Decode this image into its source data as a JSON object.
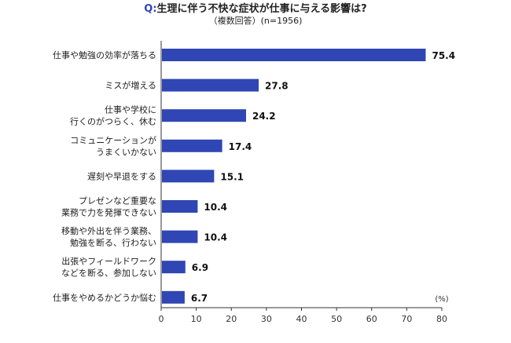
{
  "chart_data": {
    "type": "bar",
    "orientation": "horizontal",
    "title_prefix": "Q:",
    "title": "生理に伴う不快な症状が仕事に与える影響は?",
    "subtitle": "（複数回答）(n=1956)",
    "unit_label": "(%)",
    "categories": [
      [
        "仕事や勉強の効率が落ちる"
      ],
      [
        "ミスが増える"
      ],
      [
        "仕事や学校に",
        "行くのがつらく、休む"
      ],
      [
        "コミュニケーションが",
        "うまくいかない"
      ],
      [
        "遅刻や早退をする"
      ],
      [
        "プレゼンなど重要な",
        "業務で力を発揮できない"
      ],
      [
        "移動や外出を伴う業務、",
        "勉強を断る、行わない"
      ],
      [
        "出張やフィールドワーク",
        "などを断る、参加しない"
      ],
      [
        "仕事をやめるかどうか悩む"
      ]
    ],
    "values": [
      75.4,
      27.8,
      24.2,
      17.4,
      15.1,
      10.4,
      10.4,
      6.9,
      6.7
    ],
    "xlim": [
      0,
      80
    ],
    "xticks": [
      0,
      10,
      20,
      30,
      40,
      50,
      60,
      70,
      80
    ],
    "bar_color": "#2f46b4",
    "grid": false
  }
}
